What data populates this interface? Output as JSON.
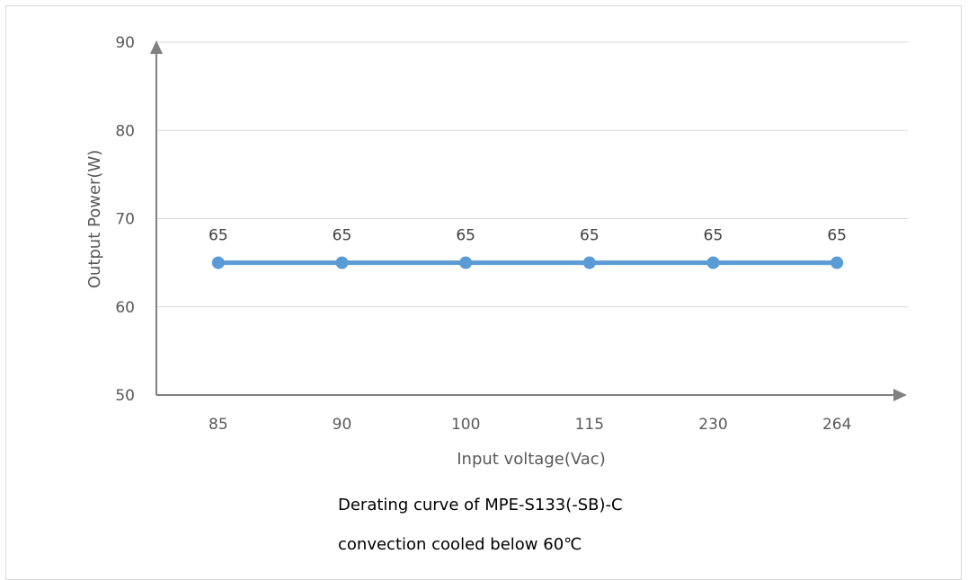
{
  "chart_data": {
    "type": "line",
    "categories": [
      "85",
      "90",
      "100",
      "115",
      "230",
      "264"
    ],
    "series": [
      {
        "values": [
          65,
          65,
          65,
          65,
          65,
          65
        ]
      }
    ],
    "data_labels": [
      "65",
      "65",
      "65",
      "65",
      "65",
      "65"
    ],
    "xlabel": "Input voltage(Vac)",
    "ylabel": "Output Power(W)",
    "ylim": [
      50,
      90
    ],
    "yticks": [
      50,
      60,
      70,
      80,
      90
    ],
    "ytick_labels": [
      "50",
      "60",
      "70",
      "80",
      "90"
    ],
    "grid": "horizontal",
    "legend": "none",
    "colors": {
      "series": "#5b9bd5",
      "axis": "#808080",
      "grid": "#d9d9d9"
    }
  },
  "caption": {
    "line1": "Derating curve of MPE-S133(-SB)-C",
    "line2": "convection cooled below 60℃"
  }
}
